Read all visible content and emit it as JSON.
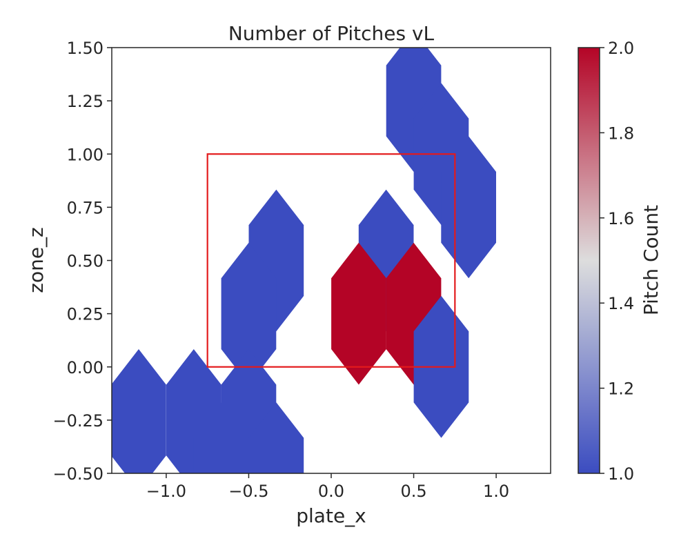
{
  "chart_data": {
    "type": "heatmap",
    "title": "Number of Pitches vL",
    "xlabel": "plate_x",
    "ylabel": "zone_z",
    "xlim": [
      -1.33,
      1.33
    ],
    "ylim": [
      -0.5,
      1.5
    ],
    "xticks": [
      -1.0,
      -0.5,
      0.0,
      0.5,
      1.0
    ],
    "xtick_labels": [
      "−1.0",
      "−0.5",
      "0.0",
      "0.5",
      "1.0"
    ],
    "yticks": [
      -0.5,
      -0.25,
      0.0,
      0.25,
      0.5,
      0.75,
      1.0,
      1.25,
      1.5
    ],
    "ytick_labels": [
      "−0.50",
      "−0.25",
      "0.00",
      "0.25",
      "0.50",
      "0.75",
      "1.00",
      "1.25",
      "1.50"
    ],
    "grid": false,
    "hex_bins": [
      {
        "x": 0.5,
        "y": 1.25,
        "count": 1
      },
      {
        "x": 0.667,
        "y": 1.0,
        "count": 1
      },
      {
        "x": 0.833,
        "y": 0.75,
        "count": 1
      },
      {
        "x": -0.333,
        "y": 0.5,
        "count": 1
      },
      {
        "x": 0.333,
        "y": 0.5,
        "count": 1
      },
      {
        "x": -0.5,
        "y": 0.25,
        "count": 1
      },
      {
        "x": 0.167,
        "y": 0.25,
        "count": 2
      },
      {
        "x": 0.5,
        "y": 0.25,
        "count": 2
      },
      {
        "x": 0.667,
        "y": 0.0,
        "count": 1
      },
      {
        "x": -1.167,
        "y": -0.25,
        "count": 1
      },
      {
        "x": -0.833,
        "y": -0.25,
        "count": 1
      },
      {
        "x": -0.5,
        "y": -0.25,
        "count": 1
      },
      {
        "x": -0.667,
        "y": -0.5,
        "count": 1
      },
      {
        "x": -0.333,
        "y": -0.5,
        "count": 1
      }
    ],
    "strike_zone": {
      "x": [
        -0.75,
        0.75
      ],
      "y": [
        0.0,
        1.0
      ],
      "color": "#e31a1c"
    },
    "colorbar": {
      "label": "Pitch Count",
      "colormap": "coolwarm",
      "min": 1.0,
      "max": 2.0,
      "ticks": [
        1.0,
        1.2,
        1.4,
        1.6,
        1.8,
        2.0
      ],
      "tick_labels": [
        "1.0",
        "1.2",
        "1.4",
        "1.6",
        "1.8",
        "2.0"
      ],
      "low_color": "#3b4cc0",
      "mid_color": "#dddddd",
      "high_color": "#b40426"
    }
  }
}
